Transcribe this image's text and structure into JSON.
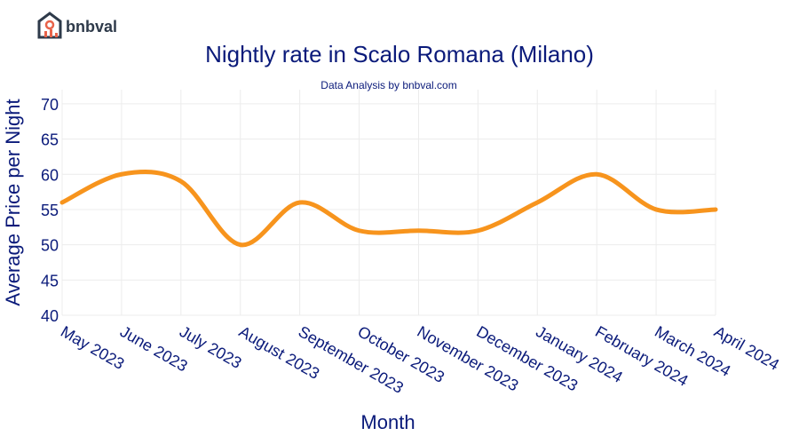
{
  "logo": "bnbval",
  "chart_data": {
    "type": "line",
    "title": "Nightly rate in Scalo Romana (Milano)",
    "subtitle": "Data Analysis by bnbval.com",
    "x_label": "Month",
    "y_label": "Average Price per Night",
    "categories": [
      "May 2023",
      "June 2023",
      "July 2023",
      "August 2023",
      "September 2023",
      "October 2023",
      "November 2023",
      "December 2023",
      "January 2024",
      "February 2024",
      "March 2024",
      "April 2024"
    ],
    "series": [
      {
        "color": "#f7941d",
        "values": [
          56,
          60,
          59,
          50,
          56,
          52,
          52,
          52,
          56,
          60,
          55,
          55
        ]
      }
    ],
    "ylim": [
      40,
      72
    ],
    "yticks": [
      40,
      45,
      50,
      55,
      60,
      65,
      70
    ],
    "grid": true,
    "smooth": true
  }
}
